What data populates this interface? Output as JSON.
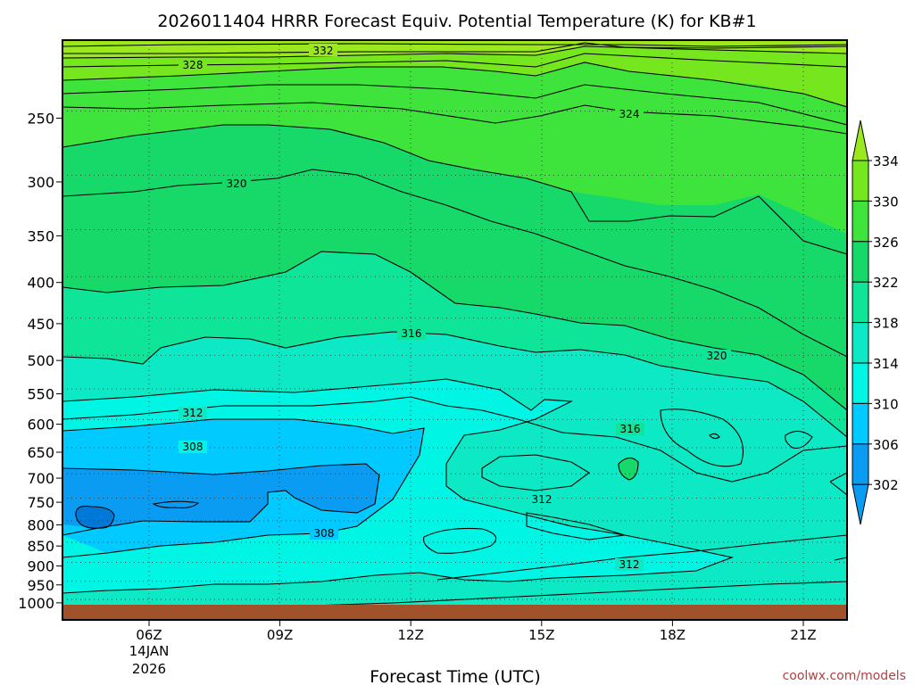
{
  "chart_data": {
    "type": "heatmap",
    "title": "2026011404 HRRR Forecast Equiv. Potential Temperature (K) for KB#1",
    "xlabel": "Forecast Time (UTC)",
    "ylabel": "",
    "x_ticks": [
      "06Z",
      "09Z",
      "12Z",
      "15Z",
      "18Z",
      "21Z"
    ],
    "x_date_line1": "14JAN",
    "x_date_line2": "2026",
    "y_ticks": [
      250,
      300,
      350,
      400,
      450,
      500,
      550,
      600,
      650,
      700,
      750,
      800,
      850,
      900,
      950,
      1000
    ],
    "colorbar_levels": [
      334,
      330,
      326,
      322,
      318,
      314,
      310,
      306,
      302
    ],
    "contour_labels": [
      "332",
      "328",
      "324",
      "320",
      "320",
      "316",
      "316",
      "312",
      "312",
      "312",
      "308",
      "308"
    ],
    "fill_colors": {
      "ge334": "#9be81e",
      "c330": "#76e61f",
      "c326": "#3ee33c",
      "c322": "#16d96a",
      "c318": "#0fe598",
      "c314": "#0de9c4",
      "c310": "#00f5e5",
      "c306": "#00caff",
      "c302": "#0a9cf2",
      "ground": "#a2522b"
    },
    "grid": true,
    "colorbar": "right"
  },
  "credit": "coolwx.com/models"
}
